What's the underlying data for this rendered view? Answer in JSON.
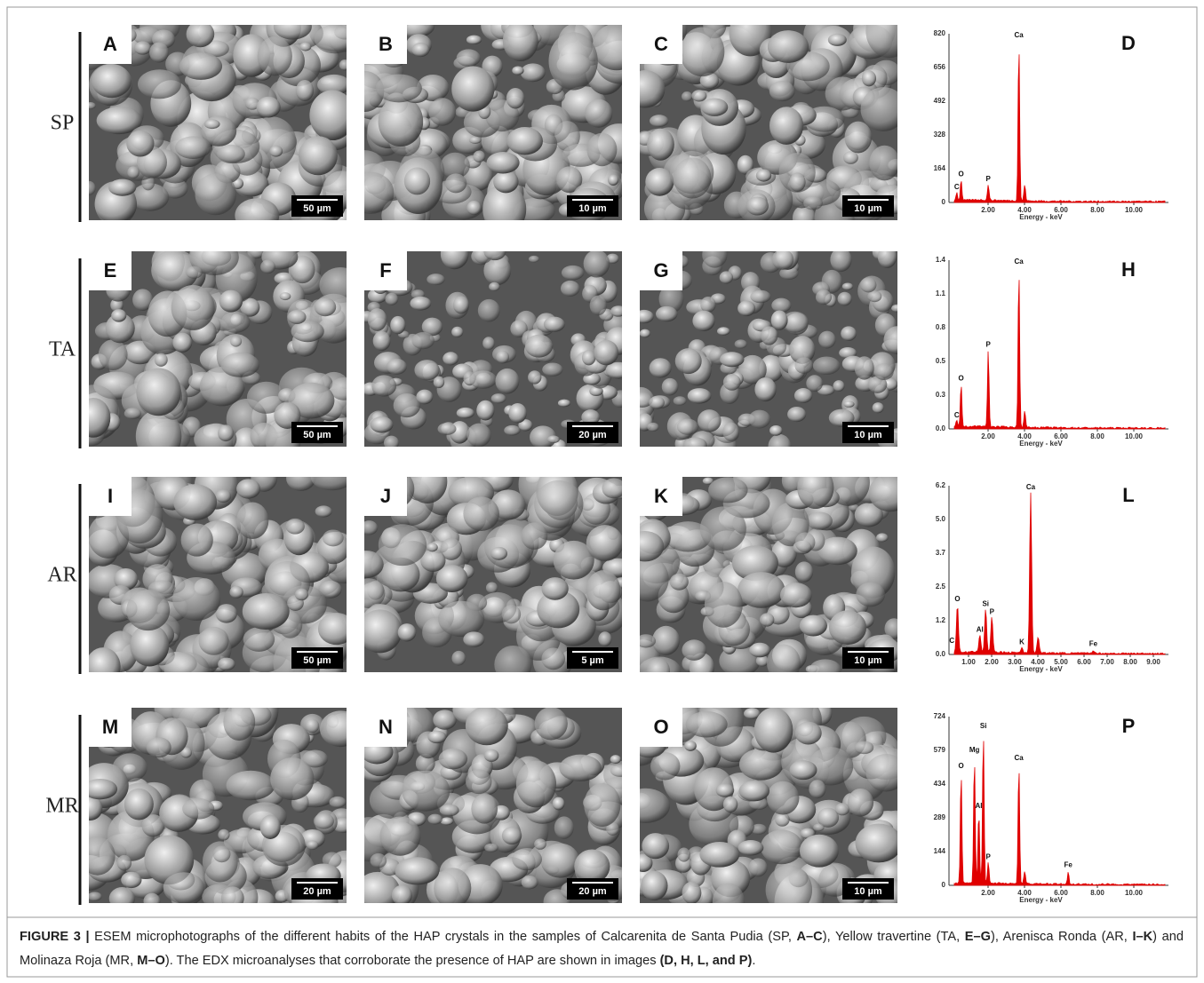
{
  "rows": [
    {
      "label": "SP",
      "panels": [
        {
          "letter": "A",
          "scale": "50 µm"
        },
        {
          "letter": "B",
          "scale": "10 µm"
        },
        {
          "letter": "C",
          "scale": "10 µm"
        }
      ],
      "edx": {
        "letter": "D",
        "yticks": [
          "0",
          "164",
          "328",
          "492",
          "656",
          "820"
        ],
        "xticks": [
          "2.00",
          "4.00",
          "6.00",
          "8.00",
          "10.00"
        ],
        "xlabel": "Energy - keV",
        "peaks": [
          "C",
          "O",
          "P",
          "Ca"
        ]
      }
    },
    {
      "label": "TA",
      "panels": [
        {
          "letter": "E",
          "scale": "50 µm"
        },
        {
          "letter": "F",
          "scale": "20 µm"
        },
        {
          "letter": "G",
          "scale": "10 µm"
        }
      ],
      "edx": {
        "letter": "H",
        "yticks": [
          "0.0",
          "0.3",
          "0.5",
          "0.8",
          "1.1",
          "1.4"
        ],
        "xticks": [
          "2.00",
          "4.00",
          "6.00",
          "8.00",
          "10.00"
        ],
        "xlabel": "Energy - keV",
        "peaks": [
          "C",
          "O",
          "P",
          "Ca"
        ]
      }
    },
    {
      "label": "AR",
      "panels": [
        {
          "letter": "I",
          "scale": "50 µm"
        },
        {
          "letter": "J",
          "scale": "5 µm"
        },
        {
          "letter": "K",
          "scale": "10 µm"
        }
      ],
      "edx": {
        "letter": "L",
        "yticks": [
          "0.0",
          "1.2",
          "2.5",
          "3.7",
          "5.0",
          "6.2"
        ],
        "xticks": [
          "1.00",
          "2.00",
          "3.00",
          "4.00",
          "5.00",
          "6.00",
          "7.00",
          "8.00",
          "9.00"
        ],
        "xlabel": "Energy - keV",
        "peaks": [
          "C",
          "O",
          "Al",
          "Si",
          "P",
          "Ca",
          "K",
          "Fe"
        ]
      }
    },
    {
      "label": "MR",
      "panels": [
        {
          "letter": "M",
          "scale": "20 µm"
        },
        {
          "letter": "N",
          "scale": "20 µm"
        },
        {
          "letter": "O",
          "scale": "10 µm"
        }
      ],
      "edx": {
        "letter": "P",
        "yticks": [
          "0",
          "144",
          "289",
          "434",
          "579",
          "724"
        ],
        "xticks": [
          "2.00",
          "4.00",
          "6.00",
          "8.00",
          "10.00"
        ],
        "xlabel": "Energy - keV",
        "peaks": [
          "O",
          "Mg",
          "Si",
          "Al",
          "P",
          "Ca",
          "Fe"
        ]
      }
    }
  ],
  "caption": {
    "segments": [
      {
        "text": "FIGURE 3 |",
        "bold": true
      },
      {
        "text": " ESEM microphotographs of the different habits of the HAP crystals in the samples of Calcarenita de Santa Pudia (SP, ",
        "bold": false
      },
      {
        "text": "A–C",
        "bold": true
      },
      {
        "text": "), Yellow travertine (TA, ",
        "bold": false
      },
      {
        "text": "E–G",
        "bold": true
      },
      {
        "text": "), Arenisca Ronda (AR, ",
        "bold": false
      },
      {
        "text": "I–K",
        "bold": true
      },
      {
        "text": ") and Molinaza Roja (MR, ",
        "bold": false
      },
      {
        "text": "M–O",
        "bold": true
      },
      {
        "text": "). The EDX microanalyses that corroborate the presence of HAP are shown in images ",
        "bold": false
      },
      {
        "text": "(D, H, L, and P)",
        "bold": true
      },
      {
        "text": ".",
        "bold": false
      }
    ]
  }
}
